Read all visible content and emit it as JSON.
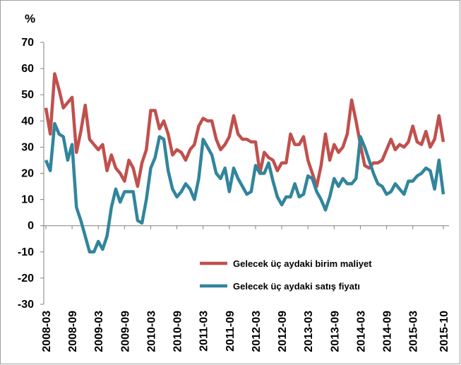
{
  "chart_data": {
    "type": "line",
    "ylabel": "%",
    "categories": [
      "2008-03",
      null,
      null,
      null,
      null,
      null,
      "2008-09",
      null,
      null,
      null,
      null,
      null,
      "2009-03",
      null,
      null,
      null,
      null,
      null,
      "2009-09",
      null,
      null,
      null,
      null,
      null,
      "2010-03",
      null,
      null,
      null,
      null,
      null,
      "2010-09",
      null,
      null,
      null,
      null,
      null,
      "2011-03",
      null,
      null,
      null,
      null,
      null,
      "2011-09",
      null,
      null,
      null,
      null,
      null,
      "2012-03",
      null,
      null,
      null,
      null,
      null,
      "2012-09",
      null,
      null,
      null,
      null,
      null,
      "2013-03",
      null,
      null,
      null,
      null,
      null,
      "2013-09",
      null,
      null,
      null,
      null,
      null,
      "2014-03",
      null,
      null,
      null,
      null,
      null,
      "2014-09",
      null,
      null,
      null,
      null,
      null,
      "2015-03",
      null,
      null,
      null,
      null,
      null,
      null,
      "2015-10"
    ],
    "series": [
      {
        "name": "Gelecek üç aydaki birim maliyet",
        "color": "#c0504d",
        "values": [
          45,
          35,
          58,
          52,
          45,
          47,
          49,
          28,
          36,
          46,
          33,
          31,
          29,
          31,
          21,
          27,
          22,
          20,
          17,
          25,
          22,
          15,
          24,
          29,
          44,
          44,
          37,
          40,
          35,
          27,
          29,
          28,
          25,
          29,
          31,
          38,
          41,
          40,
          40,
          33,
          29,
          31,
          34,
          42,
          35,
          33,
          33,
          32,
          32,
          20,
          28,
          26,
          25,
          21,
          24,
          24,
          35,
          31,
          31,
          34,
          25,
          20,
          15,
          23,
          35,
          25,
          31,
          28,
          30,
          35,
          48,
          40,
          31,
          23,
          22,
          24,
          24,
          25,
          29,
          33,
          29,
          31,
          30,
          32,
          38,
          32,
          31,
          36,
          30,
          33,
          42,
          32
        ]
      },
      {
        "name": "Gelecek üç aydaki satış fiyatı",
        "color": "#31859c",
        "values": [
          25,
          21,
          39,
          35,
          34,
          25,
          31,
          7,
          2,
          -4,
          -10,
          -10,
          -6,
          -9,
          -4,
          7,
          14,
          9,
          13,
          13,
          13,
          2,
          1,
          10,
          22,
          26,
          34,
          33,
          21,
          14,
          11,
          13,
          16,
          14,
          10,
          18,
          33,
          30,
          27,
          20,
          18,
          22,
          13,
          22,
          18,
          15,
          12,
          13,
          23,
          20,
          20,
          24,
          17,
          11,
          8,
          11,
          11,
          16,
          11,
          12,
          19,
          18,
          13,
          10,
          6,
          11,
          18,
          15,
          18,
          16,
          16,
          18,
          34,
          30,
          25,
          20,
          16,
          15,
          12,
          13,
          16,
          14,
          12,
          17,
          17,
          19,
          20,
          22,
          21,
          14,
          25,
          12
        ]
      }
    ],
    "ylim": [
      -30,
      70
    ],
    "yticks": [
      -30,
      -20,
      -10,
      0,
      10,
      20,
      30,
      40,
      50,
      60,
      70
    ]
  }
}
